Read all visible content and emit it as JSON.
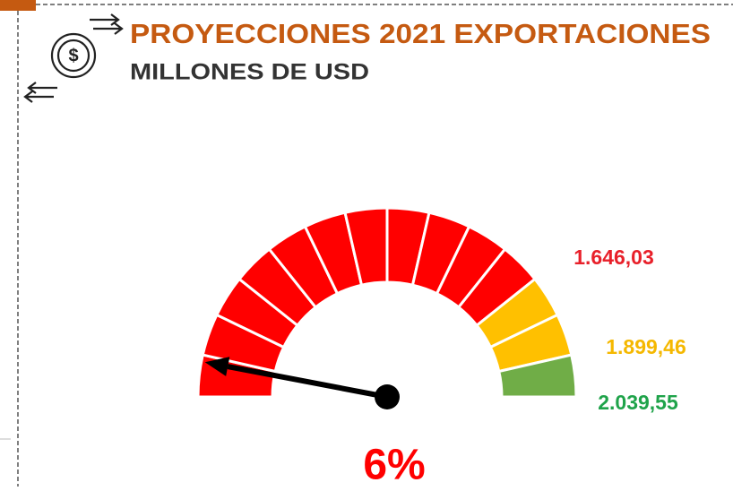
{
  "chart_data": {
    "type": "gauge",
    "title": "PROYECCIONES 2021 EXPORTACIONES",
    "subtitle": "MILLONES DE USD",
    "value": 6,
    "value_labels": [
      "6%"
    ],
    "ylim": [
      0,
      100
    ],
    "needle_color": "#000000",
    "value_label_color": "#ff0000",
    "title_color": "#c55a11",
    "subtitle_color": "#333333",
    "segment_colors": [
      "#ff0000",
      "#ff0000",
      "#ff0000",
      "#ff0000",
      "#ff0000",
      "#ff0000",
      "#ff0000",
      "#ff0000",
      "#ff0000",
      "#ff0000",
      "#ff0000",
      "#ffc000",
      "#ffc000",
      "#70ad47"
    ],
    "annotations": [
      {
        "text": "1.646,03",
        "color": "#e8202a"
      },
      {
        "text": "1.899,46",
        "color": "#f5b800"
      },
      {
        "text": "2.039,55",
        "color": "#1fa34a"
      }
    ]
  }
}
